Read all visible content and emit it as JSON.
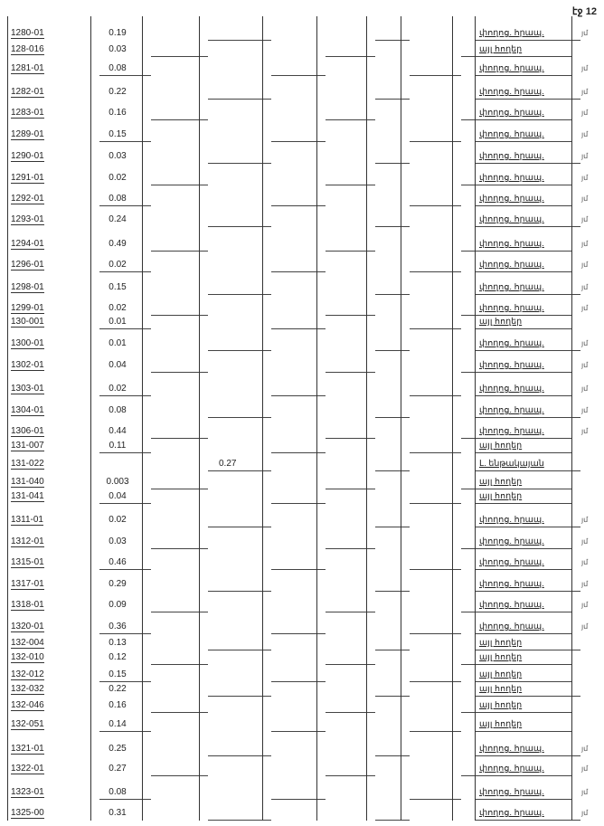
{
  "page_label": "էջ 12",
  "rows": [
    {
      "code": "1280-01",
      "area": "0.19",
      "use": "փողոց. հրապ.",
      "mark": "յմ"
    },
    {
      "code": "128-016",
      "area": "0.03",
      "use": "այլ հողեր",
      "mark": ""
    },
    {
      "code": "1281-01",
      "area": "0.08",
      "use": "փողոց. հրապ.",
      "mark": "յմ"
    },
    {
      "code": "1282-01",
      "area": "0.22",
      "use": "փողոց. հրապ.",
      "mark": "յմ"
    },
    {
      "code": "1283-01",
      "area": "0.16",
      "use": "փողոց. հրապ.",
      "mark": "յմ"
    },
    {
      "code": "1289-01",
      "area": "0.15",
      "use": "փողոց. հրապ.",
      "mark": "յմ"
    },
    {
      "code": "1290-01",
      "area": "0.03",
      "use": "փողոց. հրապ.",
      "mark": "յմ"
    },
    {
      "code": "1291-01",
      "area": "0.02",
      "use": "փողոց. հրապ.",
      "mark": "յմ"
    },
    {
      "code": "1292-01",
      "area": "0.08",
      "use": "փողոց. հրապ.",
      "mark": "յմ"
    },
    {
      "code": "1293-01",
      "area": "0.24",
      "use": "փողոց. հրապ.",
      "mark": "յմ"
    },
    {
      "code": "1294-01",
      "area": "0.49",
      "use": "փողոց. հրապ.",
      "mark": "յմ"
    },
    {
      "code": "1296-01",
      "area": "0.02",
      "use": "փողոց. հրապ.",
      "mark": "յմ"
    },
    {
      "code": "1298-01",
      "area": "0.15",
      "use": "փողոց. հրապ.",
      "mark": "յմ"
    },
    {
      "code": "1299-01",
      "area": "0.02",
      "use": "փողոց. հրապ.",
      "mark": "յմ"
    },
    {
      "code": "130-001",
      "area": "0.01",
      "use": "այլ հողեր",
      "mark": ""
    },
    {
      "code": "1300-01",
      "area": "0.01",
      "use": "փողոց. հրապ.",
      "mark": "յմ"
    },
    {
      "code": "1302-01",
      "area": "0.04",
      "use": "փողոց. հրապ.",
      "mark": "յմ"
    },
    {
      "code": "1303-01",
      "area": "0.02",
      "use": "փողոց. հրապ.",
      "mark": "յմ"
    },
    {
      "code": "1304-01",
      "area": "0.08",
      "use": "փողոց. հրապ.",
      "mark": "յմ"
    },
    {
      "code": "1306-01",
      "area": "0.44",
      "use": "փողոց. հրապ.",
      "mark": "յմ"
    },
    {
      "code": "131-007",
      "area": "0.11",
      "use": "այլ հողեր",
      "mark": ""
    },
    {
      "code": "131-022",
      "area": "",
      "c4": "0.27",
      "use": "Լ. ենթակայան",
      "mark": ""
    },
    {
      "code": "131-040",
      "area": "0.003",
      "use": "այլ հողեր",
      "mark": ""
    },
    {
      "code": "131-041",
      "area": "0.04",
      "use": "այլ հողեր",
      "mark": ""
    },
    {
      "code": "1311-01",
      "area": "0.02",
      "use": "փողոց. հրապ.",
      "mark": "յմ"
    },
    {
      "code": "1312-01",
      "area": "0.03",
      "use": "փողոց. հրապ.",
      "mark": "յմ"
    },
    {
      "code": "1315-01",
      "area": "0.46",
      "use": "փողոց. հրապ.",
      "mark": "յմ"
    },
    {
      "code": "1317-01",
      "area": "0.29",
      "use": "փողոց. հրապ.",
      "mark": "յմ"
    },
    {
      "code": "1318-01",
      "area": "0.09",
      "use": "փողոց. հրապ.",
      "mark": "յմ"
    },
    {
      "code": "1320-01",
      "area": "0.36",
      "use": "փողոց. հրապ.",
      "mark": "յմ"
    },
    {
      "code": "132-004",
      "area": "0.13",
      "use": "այլ հողեր",
      "mark": ""
    },
    {
      "code": "132-010",
      "area": "0.12",
      "use": "այլ հողեր",
      "mark": ""
    },
    {
      "code": "132-012",
      "area": "0.15",
      "use": "այլ հողեր",
      "mark": ""
    },
    {
      "code": "132-032",
      "area": "0.22",
      "use": "այլ հողեր",
      "mark": ""
    },
    {
      "code": "132-046",
      "area": "0.16",
      "use": "այլ հողեր",
      "mark": ""
    },
    {
      "code": "132-051",
      "area": "0.14",
      "use": "այլ հողեր",
      "mark": ""
    },
    {
      "code": "1321-01",
      "area": "0.25",
      "use": "փողոց. հրապ.",
      "mark": "յմ"
    },
    {
      "code": "1322-01",
      "area": "0.27",
      "use": "փողոց. հրապ.",
      "mark": "յմ"
    },
    {
      "code": "1323-01",
      "area": "0.08",
      "use": "փողոց. հրապ.",
      "mark": "յմ"
    },
    {
      "code": "1325-00",
      "area": "0.31",
      "use": "փողոց. հրապ.",
      "mark": "յմ"
    }
  ]
}
